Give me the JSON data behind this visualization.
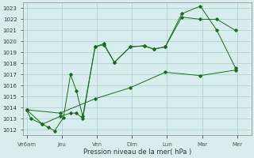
{
  "xlabel": "Pression niveau de la mer( hPa )",
  "bg_color": "#d8eeee",
  "grid_color": "#aacccc",
  "line_color": "#1a6b1a",
  "xtick_labels": [
    "Ve6am",
    "Jeu",
    "Ven",
    "Dim",
    "Lun",
    "Mar",
    "Mer"
  ],
  "xtick_positions": [
    0,
    1,
    2,
    3,
    4,
    5,
    6
  ],
  "ylim": [
    1011.5,
    1023.5
  ],
  "yticks": [
    1012,
    1013,
    1014,
    1015,
    1016,
    1017,
    1018,
    1019,
    1020,
    1021,
    1022,
    1023
  ],
  "xlim": [
    -0.1,
    6.4
  ],
  "line1_x": [
    0.0,
    0.12,
    0.45,
    0.62,
    0.8,
    1.05,
    1.25,
    1.42,
    1.6,
    1.95,
    2.2,
    2.5,
    2.95,
    3.35,
    3.62,
    3.95,
    4.42,
    4.95,
    5.42,
    5.95
  ],
  "line1_y": [
    1013.8,
    1013.0,
    1012.5,
    1012.2,
    1011.9,
    1013.1,
    1017.0,
    1015.5,
    1013.2,
    1019.5,
    1019.8,
    1018.1,
    1019.5,
    1019.6,
    1019.3,
    1019.5,
    1022.5,
    1023.2,
    1021.0,
    1017.6
  ],
  "line2_x": [
    0.0,
    0.45,
    0.95,
    1.25,
    1.42,
    1.6,
    1.95,
    2.2,
    2.5,
    2.95,
    3.35,
    3.62,
    3.95,
    4.42,
    4.95,
    5.42,
    5.95
  ],
  "line2_y": [
    1013.8,
    1012.5,
    1013.2,
    1013.5,
    1013.5,
    1013.0,
    1019.5,
    1019.7,
    1018.1,
    1019.5,
    1019.6,
    1019.3,
    1019.5,
    1022.2,
    1022.0,
    1022.0,
    1021.0
  ],
  "line3_x": [
    0.0,
    0.95,
    1.95,
    2.95,
    3.95,
    4.95,
    5.95
  ],
  "line3_y": [
    1013.8,
    1013.5,
    1014.8,
    1015.8,
    1017.2,
    1016.9,
    1017.4
  ]
}
